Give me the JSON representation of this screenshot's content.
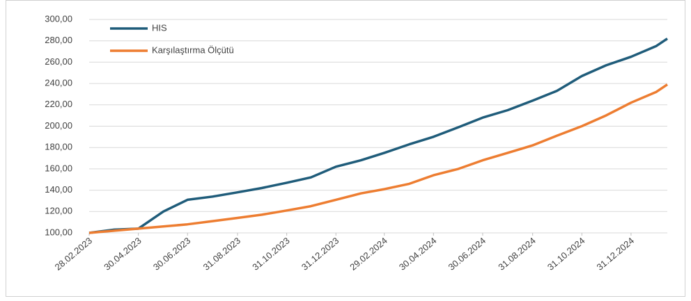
{
  "chart_data": {
    "type": "line",
    "x": [
      "2023-02-28",
      "2023-03-31",
      "2023-04-30",
      "2023-05-31",
      "2023-06-30",
      "2023-07-31",
      "2023-08-31",
      "2023-09-30",
      "2023-10-31",
      "2023-11-30",
      "2023-12-31",
      "2024-01-31",
      "2024-02-29",
      "2024-03-31",
      "2024-04-30",
      "2024-05-31",
      "2024-06-30",
      "2024-07-31",
      "2024-08-31",
      "2024-09-30",
      "2024-10-31",
      "2024-11-30",
      "2024-12-31",
      "2025-01-31",
      "2025-02-14"
    ],
    "series": [
      {
        "name": "HIS",
        "color": "#1f5c7a",
        "values": [
          100,
          103,
          104,
          120,
          131,
          134,
          138,
          142,
          147,
          152,
          162,
          168,
          175,
          183,
          190,
          199,
          208,
          215,
          224,
          233,
          247,
          257,
          265,
          275,
          282
        ]
      },
      {
        "name": "Karşılaştırma Ölçütü",
        "color": "#ed7d31",
        "values": [
          100,
          102,
          104,
          106,
          108,
          111,
          114,
          117,
          121,
          125,
          131,
          137,
          141,
          146,
          154,
          160,
          168,
          175,
          182,
          191,
          200,
          210,
          222,
          232,
          239
        ]
      }
    ],
    "xlim": [
      "2023-02-28",
      "2025-02-14"
    ],
    "xticks": [
      {
        "value": "2023-02-28",
        "label": "28.02.2023"
      },
      {
        "value": "2023-04-30",
        "label": "30.04.2023"
      },
      {
        "value": "2023-06-30",
        "label": "30.06.2023"
      },
      {
        "value": "2023-08-31",
        "label": "31.08.2023"
      },
      {
        "value": "2023-10-31",
        "label": "31.10.2023"
      },
      {
        "value": "2023-12-31",
        "label": "31.12.2023"
      },
      {
        "value": "2024-02-29",
        "label": "29.02.2024"
      },
      {
        "value": "2024-04-30",
        "label": "30.04.2024"
      },
      {
        "value": "2024-06-30",
        "label": "30.06.2024"
      },
      {
        "value": "2024-08-31",
        "label": "31.08.2024"
      },
      {
        "value": "2024-10-31",
        "label": "31.10.2024"
      },
      {
        "value": "2024-12-31",
        "label": "31.12.2024"
      }
    ],
    "ylim": [
      100,
      300
    ],
    "yticks": [
      {
        "value": 100,
        "label": "100,00"
      },
      {
        "value": 120,
        "label": "120,00"
      },
      {
        "value": 140,
        "label": "140,00"
      },
      {
        "value": 160,
        "label": "160,00"
      },
      {
        "value": 180,
        "label": "180,00"
      },
      {
        "value": 200,
        "label": "200,00"
      },
      {
        "value": 220,
        "label": "220,00"
      },
      {
        "value": 240,
        "label": "240,00"
      },
      {
        "value": 260,
        "label": "260,00"
      },
      {
        "value": 280,
        "label": "280,00"
      },
      {
        "value": 300,
        "label": "300,00"
      }
    ],
    "grid": true,
    "legend": "upper left"
  }
}
